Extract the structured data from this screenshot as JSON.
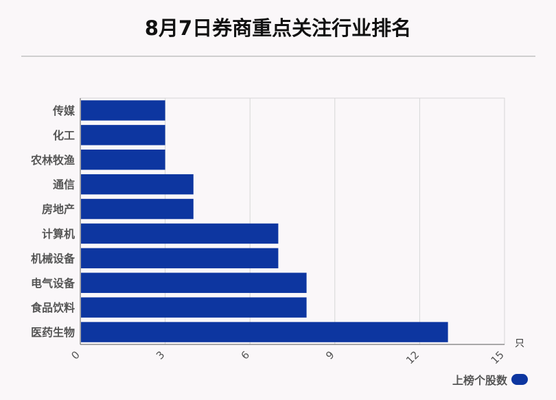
{
  "chart_data": {
    "type": "bar",
    "orientation": "horizontal",
    "title": "8月7日券商重点关注行业排名",
    "categories": [
      "传媒",
      "化工",
      "农林牧渔",
      "通信",
      "房地产",
      "计算机",
      "机械设备",
      "电气设备",
      "食品饮料",
      "医药生物"
    ],
    "series": [
      {
        "name": "上榜个股数",
        "values": [
          3,
          3,
          3,
          4,
          4,
          7,
          7,
          8,
          8,
          13
        ]
      }
    ],
    "xlim": [
      0,
      15
    ],
    "xticks": [
      0,
      3,
      6,
      9,
      12,
      15
    ],
    "x_unit": "只",
    "grid": true,
    "legend_position": "bottom-right",
    "bar_color": "#0d36a0"
  }
}
